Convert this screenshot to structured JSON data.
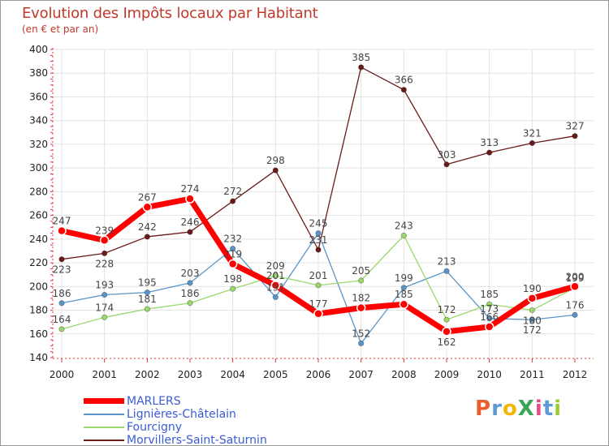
{
  "header": {
    "title": "Evolution des Impôts locaux par Habitant",
    "subtitle": "(en € et par an)"
  },
  "chart_data": {
    "type": "line",
    "title": "Evolution des Impôts locaux par Habitant",
    "subtitle": "(en € et par an)",
    "xlabel": "",
    "ylabel": "",
    "ylim": [
      140,
      400
    ],
    "yticks": [
      140,
      160,
      180,
      200,
      220,
      240,
      260,
      280,
      300,
      320,
      340,
      360,
      380,
      400
    ],
    "categories": [
      "2000",
      "2001",
      "2002",
      "2003",
      "2004",
      "2005",
      "2006",
      "2007",
      "2008",
      "2009",
      "2010",
      "2011",
      "2012"
    ],
    "grid": true,
    "legend_position": "bottom-left",
    "series": [
      {
        "name": "Morvillers-Saint-Saturnin",
        "color": "#6b1a1a",
        "width": 1.3,
        "values": [
          223,
          228,
          242,
          246,
          272,
          298,
          231,
          385,
          366,
          303,
          313,
          321,
          327
        ],
        "label_pos": [
          "below",
          "below",
          "above",
          "above",
          "above",
          "above",
          "above",
          "above",
          "above",
          "above",
          "above",
          "above",
          "above"
        ]
      },
      {
        "name": "Lignières-Châtelain",
        "color": "#5b95c8",
        "width": 1.3,
        "values": [
          186,
          193,
          195,
          203,
          232,
          191,
          245,
          152,
          199,
          213,
          173,
          172,
          176
        ],
        "label_pos": [
          "above",
          "above",
          "above",
          "above",
          "above",
          "above",
          "above",
          "above",
          "above",
          "above",
          "above",
          "below",
          "above"
        ]
      },
      {
        "name": "Fourcigny",
        "color": "#9ad86b",
        "width": 1.3,
        "values": [
          164,
          174,
          181,
          186,
          198,
          209,
          201,
          205,
          243,
          172,
          185,
          180,
          199
        ],
        "label_pos": [
          "above",
          "above",
          "above",
          "above",
          "above",
          "above",
          "above",
          "above",
          "above",
          "above",
          "above",
          "below",
          "above"
        ]
      },
      {
        "name": "MARLERS",
        "color": "#ff0000",
        "width": 7,
        "values": [
          247,
          239,
          267,
          274,
          219,
          201,
          177,
          182,
          185,
          162,
          166,
          190,
          200
        ],
        "label_pos": [
          "above",
          "above",
          "above",
          "above",
          "above",
          "above",
          "above",
          "above",
          "above",
          "below",
          "above",
          "above",
          "above"
        ]
      }
    ]
  },
  "legend": {
    "items": [
      {
        "label": "MARLERS",
        "color": "#ff0000",
        "thickness": "thick"
      },
      {
        "label": "Lignières-Châtelain",
        "color": "#5b95c8",
        "thickness": "thin"
      },
      {
        "label": "Fourcigny",
        "color": "#9ad86b",
        "thickness": "thin"
      },
      {
        "label": "Morvillers-Saint-Saturnin",
        "color": "#6b1a1a",
        "thickness": "thin"
      }
    ]
  },
  "logo": {
    "text": "ProXiti",
    "colors": [
      "#e8612c",
      "#5b9bd5",
      "#f2b705",
      "#3aa655",
      "#e84b8a",
      "#5b9bd5",
      "#9acd32"
    ]
  }
}
